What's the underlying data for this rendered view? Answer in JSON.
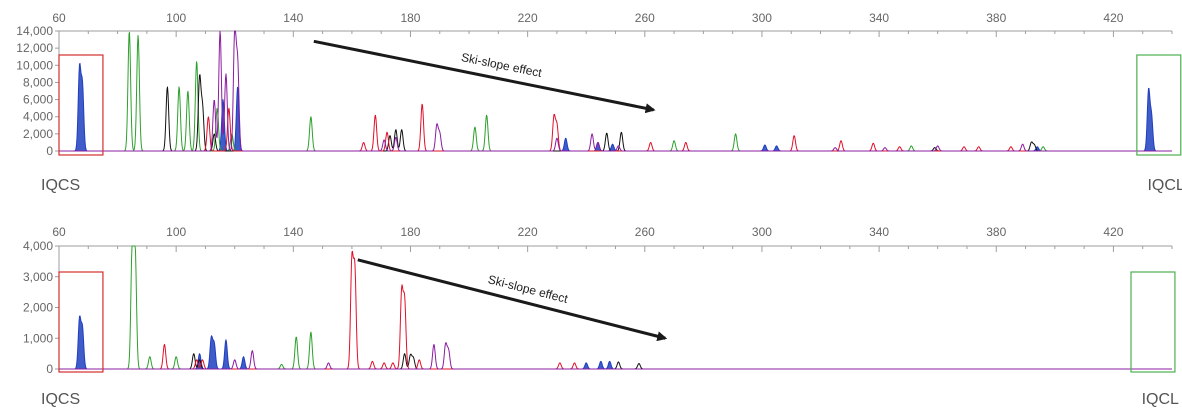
{
  "chart_data": [
    {
      "type": "line",
      "panel": "top",
      "xlim": [
        60,
        440
      ],
      "ylim": [
        0,
        14000
      ],
      "x_ticks": [
        60,
        100,
        140,
        180,
        220,
        260,
        300,
        340,
        380,
        420
      ],
      "y_ticks": [
        0,
        2000,
        4000,
        6000,
        8000,
        10000,
        12000,
        14000
      ],
      "y_tick_labels": [
        "0",
        "2,000",
        "4,000",
        "6,000",
        "8,000",
        "10,000",
        "12,000",
        "14,000"
      ],
      "grid": false,
      "boxes": [
        {
          "label": "IQCS",
          "x_range": [
            60,
            75
          ],
          "color": "#d32f2f"
        },
        {
          "label": "IQCL",
          "x_range": [
            428,
            443
          ],
          "color": "#4caf50"
        }
      ],
      "annotation": {
        "text": "Ski-slope effect",
        "from": [
          147,
          12800
        ],
        "to": [
          263,
          4800
        ]
      },
      "series": [
        {
          "color": "#1f3fbf",
          "peaks": [
            [
              67,
              9500
            ],
            [
              68,
              7500
            ],
            [
              121,
              7500
            ],
            [
              116,
              6000
            ],
            [
              233,
              1500
            ],
            [
              244,
              1000
            ],
            [
              249,
              800
            ],
            [
              301,
              700
            ],
            [
              305,
              600
            ],
            [
              394,
              500
            ],
            [
              432,
              7000
            ],
            [
              433,
              4000
            ]
          ]
        },
        {
          "color": "#2ca02c",
          "peaks": [
            [
              84,
              14000
            ],
            [
              87,
              13500
            ],
            [
              101,
              7500
            ],
            [
              104,
              7000
            ],
            [
              107,
              10500
            ],
            [
              114,
              5000
            ],
            [
              119,
              2000
            ],
            [
              146,
              4000
            ],
            [
              202,
              2800
            ],
            [
              206,
              4200
            ],
            [
              270,
              1200
            ],
            [
              291,
              2000
            ],
            [
              351,
              600
            ],
            [
              396,
              500
            ]
          ]
        },
        {
          "color": "#111111",
          "peaks": [
            [
              97,
              7500
            ],
            [
              108,
              8500
            ],
            [
              109,
              5000
            ],
            [
              113,
              2000
            ],
            [
              173,
              1800
            ],
            [
              175,
              2500
            ],
            [
              177,
              2500
            ],
            [
              247,
              2100
            ],
            [
              252,
              2200
            ],
            [
              359,
              400
            ],
            [
              393,
              700
            ],
            [
              392,
              1000
            ]
          ]
        },
        {
          "color": "#e0102a",
          "peaks": [
            [
              111,
              4000
            ],
            [
              118,
              5000
            ],
            [
              164,
              1000
            ],
            [
              168,
              4200
            ],
            [
              172,
              2200
            ],
            [
              184,
              5500
            ],
            [
              229,
              4000
            ],
            [
              230,
              3000
            ],
            [
              262,
              1000
            ],
            [
              274,
              1000
            ],
            [
              311,
              1800
            ],
            [
              327,
              1200
            ],
            [
              338,
              900
            ],
            [
              347,
              500
            ],
            [
              369,
              500
            ],
            [
              374,
              500
            ],
            [
              385,
              500
            ]
          ]
        },
        {
          "color": "#8b1ca0",
          "peaks": [
            [
              113,
              6000
            ],
            [
              115,
              14000
            ],
            [
              117,
              9000
            ],
            [
              120,
              14000
            ],
            [
              121,
              10000
            ],
            [
              171,
              1300
            ],
            [
              175,
              1600
            ],
            [
              189,
              3000
            ],
            [
              190,
              2000
            ],
            [
              230,
              1500
            ],
            [
              242,
              2000
            ],
            [
              244,
              1000
            ],
            [
              251,
              600
            ],
            [
              325,
              400
            ],
            [
              342,
              400
            ],
            [
              360,
              600
            ],
            [
              389,
              800
            ]
          ]
        }
      ]
    },
    {
      "type": "line",
      "panel": "bottom",
      "xlim": [
        60,
        440
      ],
      "ylim": [
        0,
        4000
      ],
      "x_ticks": [
        60,
        100,
        140,
        180,
        220,
        260,
        300,
        340,
        380,
        420
      ],
      "y_ticks": [
        0,
        1000,
        2000,
        3000,
        4000
      ],
      "y_tick_labels": [
        "0",
        "1,000",
        "2,000",
        "3,000",
        "4,000"
      ],
      "grid": false,
      "boxes": [
        {
          "label": "IQCS",
          "x_range": [
            60,
            75
          ],
          "color": "#d32f2f"
        },
        {
          "label": "IQCL",
          "x_range": [
            426,
            441
          ],
          "color": "#4caf50"
        }
      ],
      "annotation": {
        "text": "Ski-slope effect",
        "from": [
          162,
          3550
        ],
        "to": [
          267,
          1000
        ]
      },
      "series": [
        {
          "color": "#1f3fbf",
          "peaks": [
            [
              67,
              1600
            ],
            [
              68,
              1300
            ],
            [
              108,
              500
            ],
            [
              112,
              1000
            ],
            [
              113,
              800
            ],
            [
              117,
              950
            ],
            [
              123,
              400
            ],
            [
              240,
              200
            ],
            [
              245,
              250
            ],
            [
              248,
              250
            ]
          ]
        },
        {
          "color": "#2ca02c",
          "peaks": [
            [
              85,
              4000
            ],
            [
              86,
              3800
            ],
            [
              91,
              400
            ],
            [
              100,
              400
            ],
            [
              141,
              1050
            ],
            [
              146,
              1200
            ],
            [
              136,
              150
            ]
          ]
        },
        {
          "color": "#111111",
          "peaks": [
            [
              106,
              500
            ],
            [
              108,
              300
            ],
            [
              178,
              500
            ],
            [
              180,
              450
            ],
            [
              181,
              350
            ],
            [
              251,
              230
            ],
            [
              258,
              180
            ]
          ]
        },
        {
          "color": "#e0102a",
          "peaks": [
            [
              96,
              800
            ],
            [
              107,
              300
            ],
            [
              109,
              300
            ],
            [
              160,
              3500
            ],
            [
              161,
              3200
            ],
            [
              167,
              250
            ],
            [
              171,
              200
            ],
            [
              174,
              200
            ],
            [
              177,
              2500
            ],
            [
              178,
              2200
            ],
            [
              183,
              300
            ],
            [
              231,
              200
            ],
            [
              236,
              200
            ]
          ]
        },
        {
          "color": "#8b1ca0",
          "peaks": [
            [
              120,
              300
            ],
            [
              126,
              600
            ],
            [
              152,
              200
            ],
            [
              188,
              800
            ],
            [
              192,
              800
            ],
            [
              193,
              600
            ]
          ]
        }
      ]
    }
  ]
}
